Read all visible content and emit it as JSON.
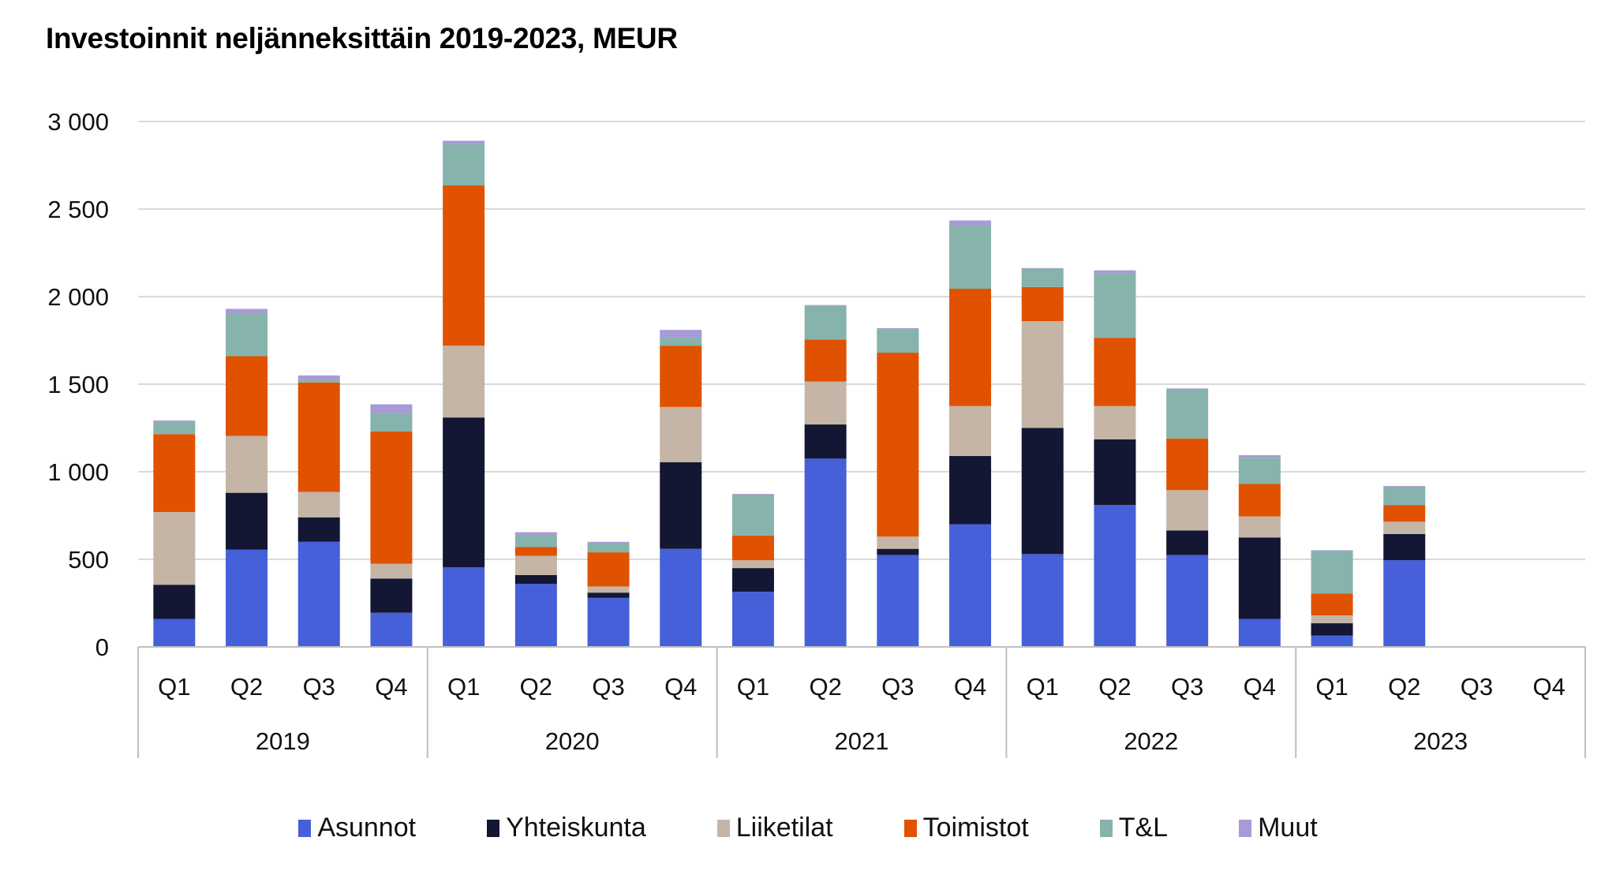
{
  "chart_data": {
    "type": "bar",
    "stacked": true,
    "title": "Investoinnit neljänneksittäin 2019-2023, MEUR",
    "xlabel": "",
    "ylabel": "",
    "ylim": [
      0,
      3000
    ],
    "yticks": [
      0,
      500,
      1000,
      1500,
      2000,
      2500,
      3000
    ],
    "ytick_labels": [
      "0",
      "500",
      "1 000",
      "1 500",
      "2 000",
      "2 500",
      "3 000"
    ],
    "grid": true,
    "legend_position": "bottom",
    "groups": [
      {
        "label": "2019",
        "quarters": [
          "Q1",
          "Q2",
          "Q3",
          "Q4"
        ]
      },
      {
        "label": "2020",
        "quarters": [
          "Q1",
          "Q2",
          "Q3",
          "Q4"
        ]
      },
      {
        "label": "2021",
        "quarters": [
          "Q1",
          "Q2",
          "Q3",
          "Q4"
        ]
      },
      {
        "label": "2022",
        "quarters": [
          "Q1",
          "Q2",
          "Q3",
          "Q4"
        ]
      },
      {
        "label": "2023",
        "quarters": [
          "Q1",
          "Q2",
          "Q3",
          "Q4"
        ]
      }
    ],
    "categories": [
      "2019 Q1",
      "2019 Q2",
      "2019 Q3",
      "2019 Q4",
      "2020 Q1",
      "2020 Q2",
      "2020 Q3",
      "2020 Q4",
      "2021 Q1",
      "2021 Q2",
      "2021 Q3",
      "2021 Q4",
      "2022 Q1",
      "2022 Q2",
      "2022 Q3",
      "2022 Q4",
      "2023 Q1",
      "2023 Q2",
      "2023 Q3",
      "2023 Q4"
    ],
    "series": [
      {
        "name": "Asunnot",
        "color": "#4660d9",
        "values": [
          160,
          555,
          600,
          195,
          455,
          360,
          280,
          560,
          315,
          1075,
          525,
          700,
          530,
          810,
          525,
          160,
          65,
          495,
          null,
          null
        ]
      },
      {
        "name": "Yhteiskunta",
        "color": "#131733",
        "values": [
          195,
          325,
          140,
          195,
          855,
          50,
          30,
          495,
          135,
          195,
          35,
          390,
          720,
          375,
          140,
          465,
          70,
          150,
          null,
          null
        ]
      },
      {
        "name": "Liiketilat",
        "color": "#c4b5a7",
        "values": [
          415,
          325,
          145,
          85,
          410,
          110,
          35,
          315,
          45,
          245,
          70,
          285,
          610,
          190,
          230,
          120,
          45,
          70,
          null,
          null
        ]
      },
      {
        "name": "Toimistot",
        "color": "#e05200",
        "values": [
          445,
          455,
          625,
          755,
          915,
          50,
          195,
          350,
          140,
          240,
          1050,
          670,
          195,
          390,
          295,
          185,
          125,
          95,
          null,
          null
        ]
      },
      {
        "name": "T&L",
        "color": "#86b3ab",
        "values": [
          70,
          245,
          15,
          105,
          235,
          70,
          55,
          45,
          235,
          195,
          135,
          360,
          105,
          365,
          280,
          150,
          245,
          105,
          null,
          null
        ]
      },
      {
        "name": "Muut",
        "color": "#a999d6",
        "values": [
          8,
          25,
          25,
          50,
          20,
          15,
          5,
          45,
          4,
          2,
          5,
          30,
          3,
          20,
          6,
          15,
          2,
          4,
          null,
          null
        ]
      }
    ]
  },
  "colors": {
    "gridline": "#d9d9d9",
    "axis": "#bfbfbf",
    "text": "#111111"
  }
}
